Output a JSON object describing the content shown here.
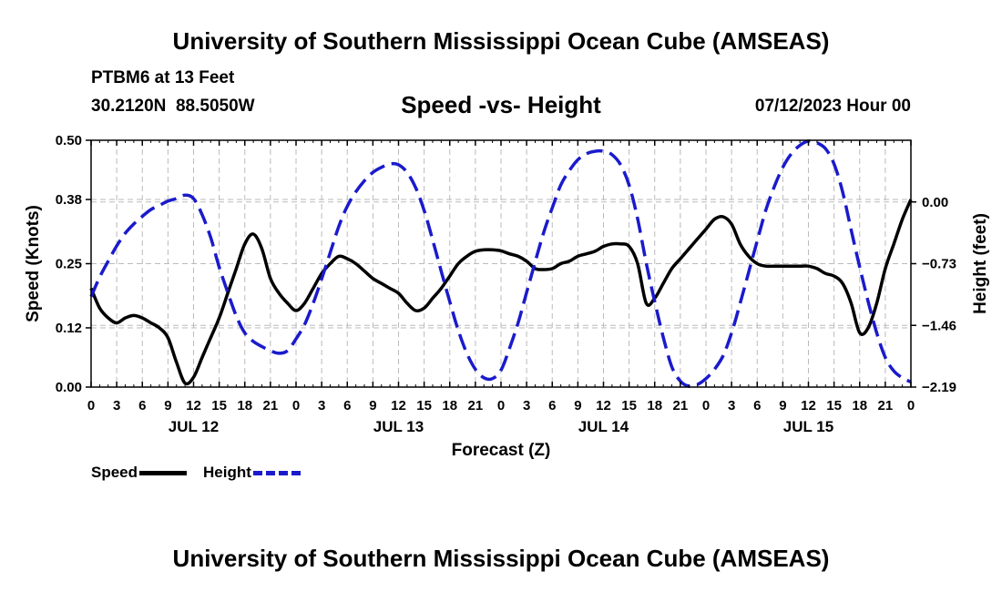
{
  "header": {
    "title": "University of Southern Mississippi Ocean Cube (AMSEAS)",
    "station": "PTBM6 at 13 Feet",
    "coords": "30.2120N  88.5050W",
    "subtitle": "Speed -vs- Height",
    "date": "07/12/2023 Hour 00"
  },
  "footer": {
    "title": "University of Southern Mississippi Ocean Cube (AMSEAS)"
  },
  "legend": {
    "speed_label": "Speed",
    "height_label": "Height"
  },
  "colors": {
    "speed": "#000000",
    "height": "#1a1acc",
    "grid": "#bbbbbb"
  },
  "chart_data": {
    "type": "line",
    "title": "Speed -vs- Height",
    "xlabel": "Forecast (Z)",
    "ylabel": "Speed (Knots)",
    "y2label": "Height (feet)",
    "xlim": [
      0,
      96
    ],
    "ylim": [
      0,
      0.5
    ],
    "y2lim": [
      -2.19,
      0.73
    ],
    "yticks": [
      0,
      0.12,
      0.25,
      0.38,
      0.5
    ],
    "ytick_labels": [
      "0.00",
      "0.12",
      "0.25",
      "0.38",
      "0.50"
    ],
    "y2ticks": [
      -2.19,
      -1.46,
      -0.73,
      0.0
    ],
    "y2tick_labels": [
      "−2.19",
      "−1.46",
      "−0.73",
      "0.00"
    ],
    "xticks": [
      0,
      3,
      6,
      9,
      12,
      15,
      18,
      21,
      24,
      27,
      30,
      33,
      36,
      39,
      42,
      45,
      48,
      51,
      54,
      57,
      60,
      63,
      66,
      69,
      72,
      75,
      78,
      81,
      84,
      87,
      90,
      93,
      96
    ],
    "xtick_labels": [
      "0",
      "3",
      "6",
      "9",
      "12",
      "15",
      "18",
      "21",
      "0",
      "3",
      "6",
      "9",
      "12",
      "15",
      "18",
      "21",
      "0",
      "3",
      "6",
      "9",
      "12",
      "15",
      "18",
      "21",
      "0",
      "3",
      "6",
      "9",
      "12",
      "15",
      "18",
      "21",
      "0"
    ],
    "day_labels": [
      {
        "x": 12,
        "label": "JUL 12"
      },
      {
        "x": 36,
        "label": "JUL 13"
      },
      {
        "x": 60,
        "label": "JUL 14"
      },
      {
        "x": 84,
        "label": "JUL 15"
      }
    ],
    "series": [
      {
        "name": "Speed",
        "axis": "left",
        "style": "solid",
        "x": [
          0,
          1,
          2,
          3,
          4,
          5,
          6,
          7,
          8,
          9,
          10,
          11,
          12,
          13,
          14,
          15,
          16,
          17,
          18,
          19,
          20,
          21,
          22,
          23,
          24,
          25,
          26,
          27,
          28,
          29,
          30,
          31,
          32,
          33,
          34,
          35,
          36,
          37,
          38,
          39,
          40,
          41,
          42,
          43,
          44,
          45,
          46,
          47,
          48,
          49,
          50,
          51,
          52,
          53,
          54,
          55,
          56,
          57,
          58,
          59,
          60,
          61,
          62,
          63,
          64,
          65,
          66,
          67,
          68,
          69,
          70,
          71,
          72,
          73,
          74,
          75,
          76,
          77,
          78,
          79,
          80,
          81,
          82,
          83,
          84,
          85,
          86,
          87,
          88,
          89,
          90,
          91,
          92,
          93,
          94,
          95,
          96
        ],
        "values": [
          0.2,
          0.16,
          0.14,
          0.13,
          0.14,
          0.145,
          0.14,
          0.13,
          0.12,
          0.1,
          0.05,
          0.008,
          0.02,
          0.06,
          0.1,
          0.14,
          0.19,
          0.24,
          0.29,
          0.31,
          0.28,
          0.22,
          0.19,
          0.17,
          0.155,
          0.17,
          0.2,
          0.23,
          0.25,
          0.265,
          0.26,
          0.25,
          0.235,
          0.22,
          0.21,
          0.2,
          0.19,
          0.17,
          0.155,
          0.16,
          0.18,
          0.2,
          0.225,
          0.25,
          0.265,
          0.275,
          0.278,
          0.278,
          0.276,
          0.27,
          0.265,
          0.255,
          0.24,
          0.238,
          0.24,
          0.25,
          0.255,
          0.265,
          0.27,
          0.275,
          0.285,
          0.29,
          0.29,
          0.285,
          0.25,
          0.17,
          0.18,
          0.21,
          0.24,
          0.26,
          0.28,
          0.3,
          0.32,
          0.34,
          0.345,
          0.33,
          0.29,
          0.265,
          0.25,
          0.245,
          0.245,
          0.245,
          0.245,
          0.245,
          0.245,
          0.24,
          0.23,
          0.225,
          0.21,
          0.17,
          0.11,
          0.12,
          0.17,
          0.24,
          0.29,
          0.34,
          0.38
        ]
      },
      {
        "name": "Height",
        "axis": "right",
        "style": "dashed",
        "x": [
          0,
          1,
          2,
          3,
          4,
          5,
          6,
          7,
          8,
          9,
          10,
          11,
          12,
          13,
          14,
          15,
          16,
          17,
          18,
          19,
          20,
          21,
          22,
          23,
          24,
          25,
          26,
          27,
          28,
          29,
          30,
          31,
          32,
          33,
          34,
          35,
          36,
          37,
          38,
          39,
          40,
          41,
          42,
          43,
          44,
          45,
          46,
          47,
          48,
          49,
          50,
          51,
          52,
          53,
          54,
          55,
          56,
          57,
          58,
          59,
          60,
          61,
          62,
          63,
          64,
          65,
          66,
          67,
          68,
          69,
          70,
          71,
          72,
          73,
          74,
          75,
          76,
          77,
          78,
          79,
          80,
          81,
          82,
          83,
          84,
          85,
          86,
          87,
          88,
          89,
          90,
          91,
          92,
          93,
          94,
          95,
          96
        ],
        "values": [
          -1.12,
          -0.89,
          -0.7,
          -0.52,
          -0.37,
          -0.26,
          -0.17,
          -0.09,
          -0.04,
          0.01,
          0.04,
          0.08,
          0.04,
          -0.15,
          -0.42,
          -0.77,
          -1.07,
          -1.35,
          -1.55,
          -1.65,
          -1.71,
          -1.76,
          -1.79,
          -1.76,
          -1.62,
          -1.45,
          -1.2,
          -0.91,
          -0.6,
          -0.29,
          -0.05,
          0.12,
          0.25,
          0.35,
          0.41,
          0.45,
          0.44,
          0.35,
          0.17,
          -0.1,
          -0.45,
          -0.82,
          -1.18,
          -1.52,
          -1.79,
          -1.98,
          -2.08,
          -2.09,
          -1.99,
          -1.73,
          -1.43,
          -1.07,
          -0.71,
          -0.36,
          -0.07,
          0.2,
          0.37,
          0.5,
          0.57,
          0.6,
          0.6,
          0.56,
          0.44,
          0.2,
          -0.2,
          -0.72,
          -1.18,
          -1.6,
          -1.95,
          -2.12,
          -2.18,
          -2.16,
          -2.09,
          -1.98,
          -1.82,
          -1.55,
          -1.2,
          -0.83,
          -0.46,
          -0.1,
          0.18,
          0.41,
          0.57,
          0.67,
          0.72,
          0.7,
          0.63,
          0.45,
          0.12,
          -0.33,
          -0.77,
          -1.18,
          -1.55,
          -1.84,
          -2.0,
          -2.08,
          -2.13
        ]
      }
    ]
  }
}
